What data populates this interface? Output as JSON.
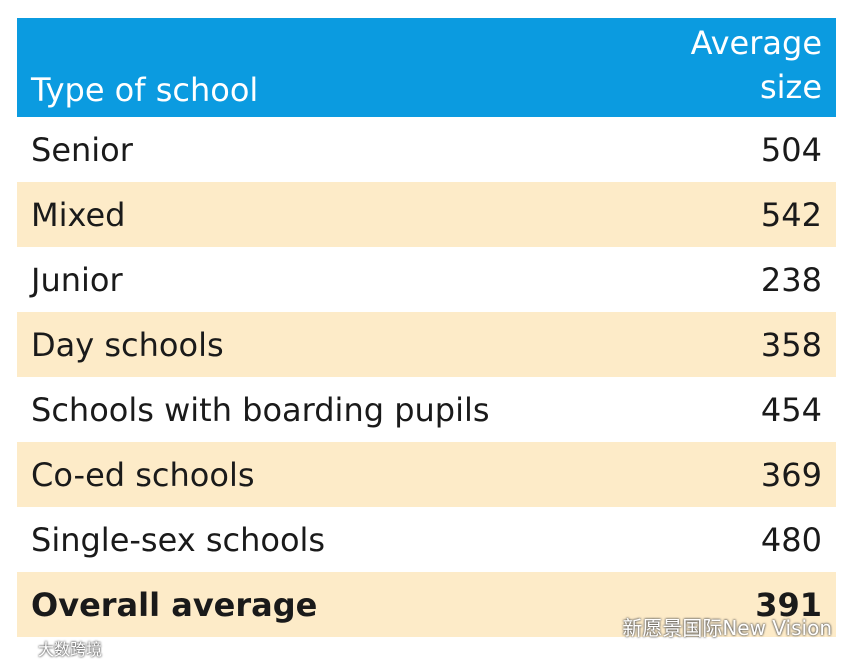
{
  "table": {
    "header": {
      "type": "Type of school",
      "size": "Average size"
    },
    "rows": [
      [
        "Senior",
        504
      ],
      [
        "Mixed",
        542
      ],
      [
        "Junior",
        238
      ],
      [
        "Day schools",
        358
      ],
      [
        "Schools with boarding pupils",
        454
      ],
      [
        "Co-ed schools",
        369
      ],
      [
        "Single-sex schools",
        480
      ]
    ],
    "footer": [
      "Overall average",
      391
    ]
  },
  "watermarks": [
    "新愿景国际New Vision",
    "大数跨境"
  ]
}
